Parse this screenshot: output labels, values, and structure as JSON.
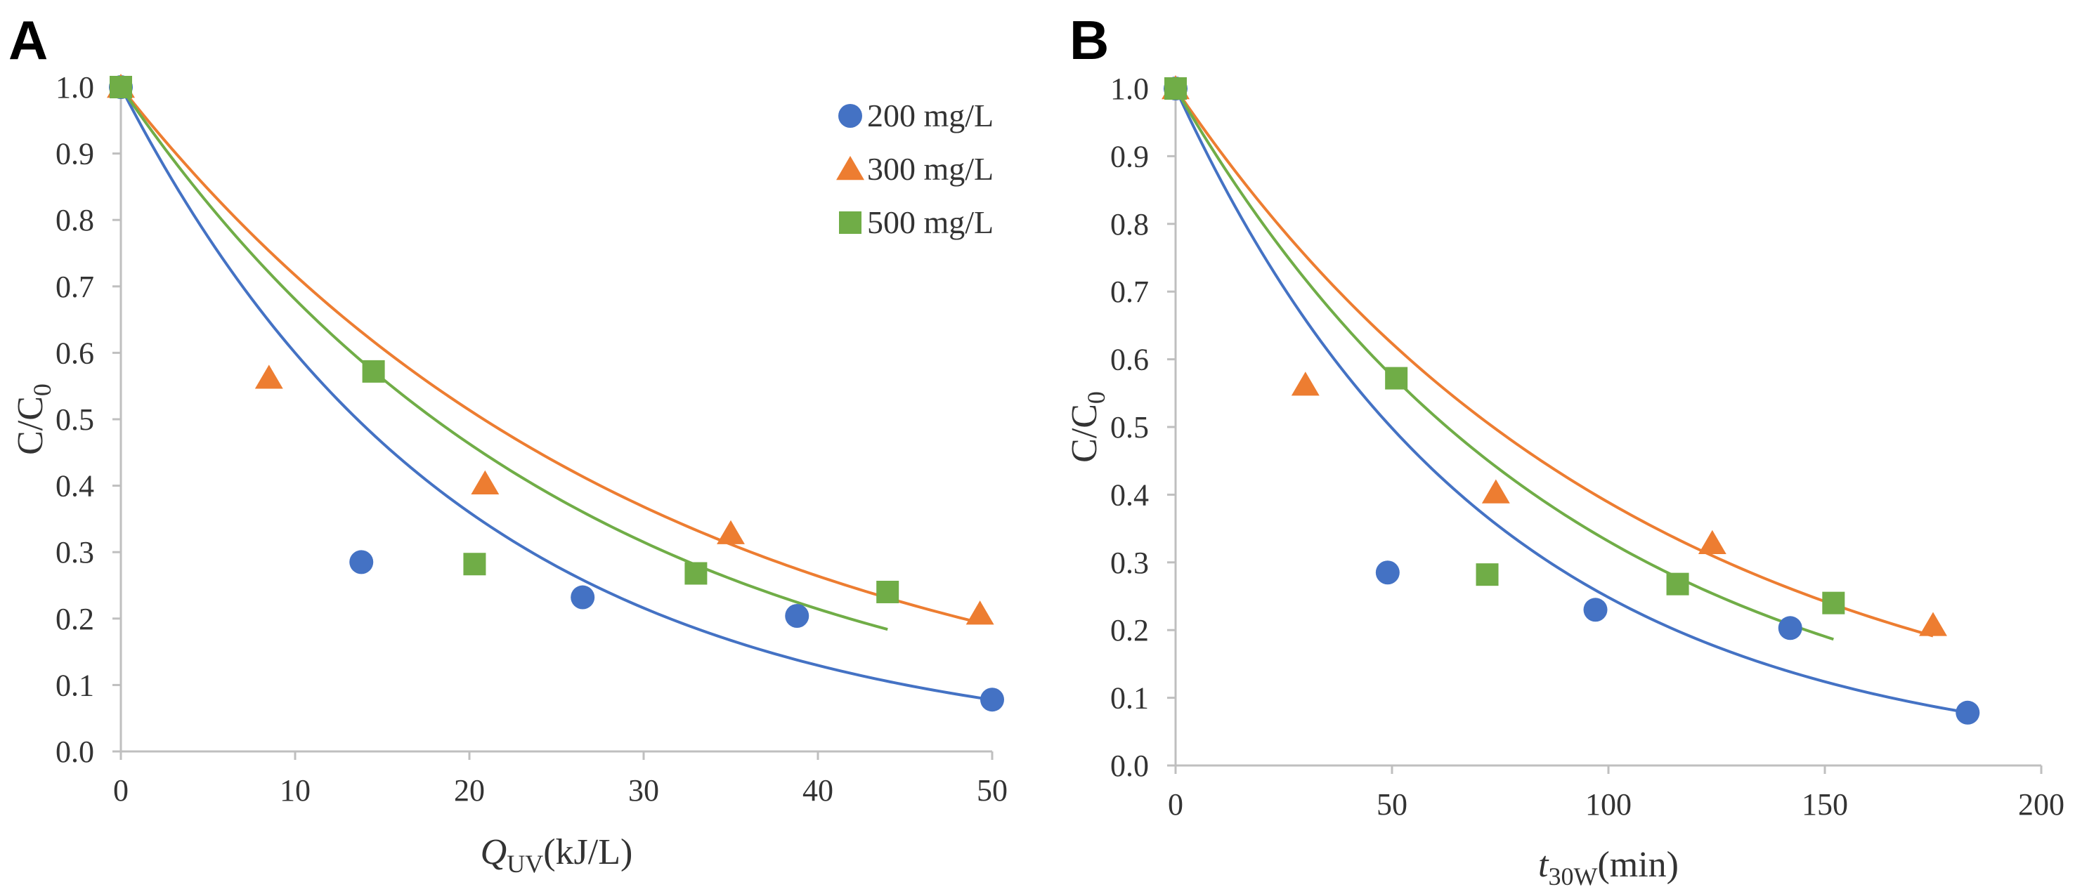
{
  "colors": {
    "c200": "#4472C4",
    "c300": "#ED7D31",
    "c500": "#70AD47",
    "axis": "#bfbfbf",
    "text": "#333333"
  },
  "chart_data": [
    {
      "panel_label": "A",
      "type": "scatter",
      "xlabel": {
        "main": "Q",
        "sub": "UV",
        "unit": "(kJ/L)"
      },
      "ylabel": {
        "main": "C/C",
        "sub": "0"
      },
      "xlim": [
        0,
        50
      ],
      "ylim": [
        0,
        1.0
      ],
      "xticks": [
        0,
        10,
        20,
        30,
        40,
        50
      ],
      "xtick_labels": [
        "0",
        "10",
        "20",
        "30",
        "40",
        "50"
      ],
      "yticks": [
        0,
        0.1,
        0.2,
        0.3,
        0.4,
        0.5,
        0.6,
        0.7,
        0.8,
        0.9,
        1.0
      ],
      "ytick_labels": [
        "0.0",
        "0.1",
        "0.2",
        "0.3",
        "0.4",
        "0.5",
        "0.6",
        "0.7",
        "0.8",
        "0.9",
        "1.0"
      ],
      "grid": false,
      "legend_position": "top-right",
      "series": [
        {
          "name": "200 mg/L",
          "marker": "circle",
          "color_key": "c200",
          "points": [
            [
              0,
              1.0
            ],
            [
              13.8,
              0.285
            ],
            [
              26.5,
              0.232
            ],
            [
              38.8,
              0.204
            ],
            [
              50,
              0.078
            ]
          ],
          "fit_k": 0.0511,
          "fit_xmax": 50
        },
        {
          "name": "300 mg/L",
          "marker": "triangle",
          "color_key": "c300",
          "points": [
            [
              0,
              1.0
            ],
            [
              8.5,
              0.562
            ],
            [
              20.9,
              0.403
            ],
            [
              35,
              0.328
            ],
            [
              49.3,
              0.207
            ]
          ],
          "fit_k": 0.0333,
          "fit_xmax": 49.3
        },
        {
          "name": "500 mg/L",
          "marker": "square",
          "color_key": "c500",
          "points": [
            [
              0,
              1.0
            ],
            [
              14.5,
              0.572
            ],
            [
              20.3,
              0.282
            ],
            [
              33,
              0.268
            ],
            [
              44,
              0.24
            ]
          ],
          "fit_k": 0.0385,
          "fit_xmax": 44
        }
      ]
    },
    {
      "panel_label": "B",
      "type": "scatter",
      "xlabel": {
        "main": "t",
        "sub": "30W",
        "unit": "(min)"
      },
      "ylabel": {
        "main": "C/C",
        "sub": "0"
      },
      "xlim": [
        0,
        200
      ],
      "ylim": [
        0,
        1.0
      ],
      "xticks": [
        0,
        50,
        100,
        150,
        200
      ],
      "xtick_labels": [
        "0",
        "50",
        "100",
        "150",
        "200"
      ],
      "yticks": [
        0,
        0.1,
        0.2,
        0.3,
        0.4,
        0.5,
        0.6,
        0.7,
        0.8,
        0.9,
        1.0
      ],
      "ytick_labels": [
        "0.0",
        "0.1",
        "0.2",
        "0.3",
        "0.4",
        "0.5",
        "0.6",
        "0.7",
        "0.8",
        "0.9",
        "1.0"
      ],
      "grid": false,
      "legend_position": "none",
      "series": [
        {
          "name": "200 mg/L",
          "marker": "circle",
          "color_key": "c200",
          "points": [
            [
              0,
              1.0
            ],
            [
              49,
              0.285
            ],
            [
              97,
              0.23
            ],
            [
              142,
              0.203
            ],
            [
              183,
              0.078
            ]
          ],
          "fit_k": 0.01393,
          "fit_xmax": 183
        },
        {
          "name": "300 mg/L",
          "marker": "triangle",
          "color_key": "c300",
          "points": [
            [
              0,
              1.0
            ],
            [
              30,
              0.562
            ],
            [
              74,
              0.403
            ],
            [
              124,
              0.328
            ],
            [
              175,
              0.207
            ]
          ],
          "fit_k": 0.00945,
          "fit_xmax": 175
        },
        {
          "name": "500 mg/L",
          "marker": "square",
          "color_key": "c500",
          "points": [
            [
              0,
              1.0
            ],
            [
              51,
              0.572
            ],
            [
              72,
              0.282
            ],
            [
              116,
              0.268
            ],
            [
              152,
              0.24
            ]
          ],
          "fit_k": 0.01105,
          "fit_xmax": 152
        }
      ]
    }
  ]
}
